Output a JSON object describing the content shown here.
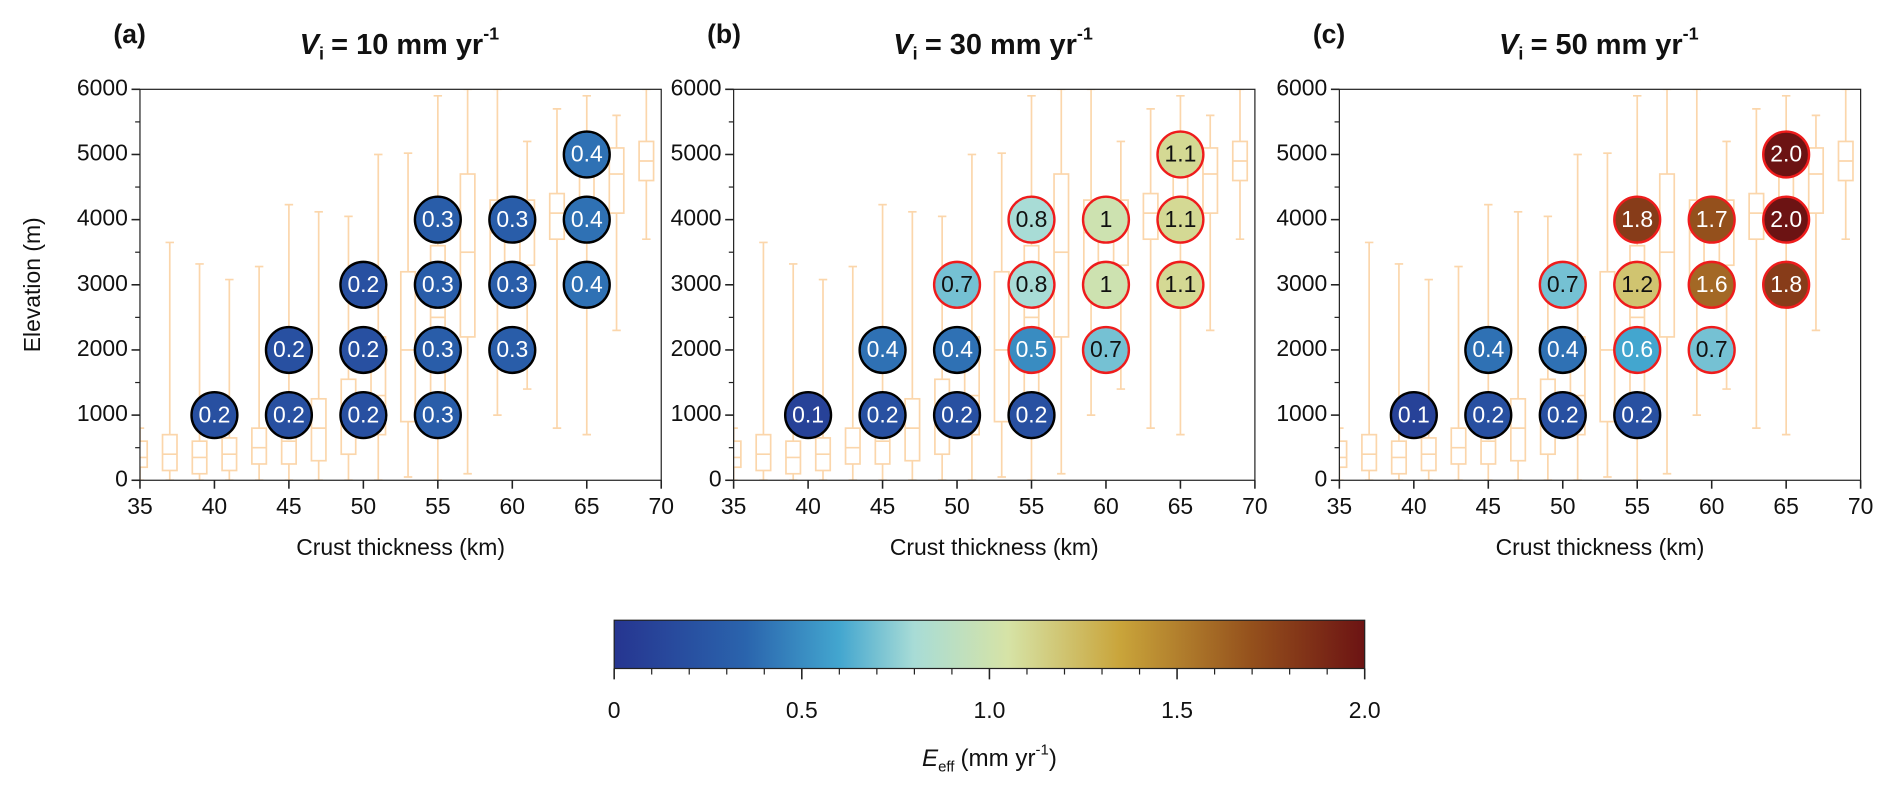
{
  "chart_data": [
    {
      "type": "scatter",
      "panel_label": "(a)",
      "title": {
        "symbol": "V",
        "subscript": "i",
        "text": "= 10 mm yr",
        "superscript": "-1"
      },
      "ylabel": "Elevation (m)",
      "xlabel": "Crust thickness (km)",
      "xlim": [
        35,
        70
      ],
      "xticks": [
        35,
        40,
        45,
        50,
        55,
        60,
        65,
        70
      ],
      "ylim": [
        0,
        6000
      ],
      "yticks": [
        0,
        1000,
        2000,
        3000,
        4000,
        5000,
        6000
      ],
      "yminor": [
        500,
        1500,
        2500,
        3500,
        4500,
        5500
      ],
      "x": [
        40,
        45,
        50,
        55,
        45,
        50,
        55,
        60,
        50,
        55,
        60,
        65,
        55,
        60,
        65,
        65
      ],
      "y": [
        1000,
        1000,
        1000,
        1000,
        2000,
        2000,
        2000,
        2000,
        3000,
        3000,
        3000,
        3000,
        4000,
        4000,
        4000,
        5000
      ],
      "values": [
        0.2,
        0.2,
        0.2,
        0.3,
        0.2,
        0.2,
        0.3,
        0.3,
        0.2,
        0.3,
        0.3,
        0.4,
        0.3,
        0.3,
        0.4,
        0.4
      ],
      "value_labels": [
        "0.2",
        "0.2",
        "0.2",
        "0.3",
        "0.2",
        "0.2",
        "0.3",
        "0.3",
        "0.2",
        "0.3",
        "0.3",
        "0.4",
        "0.3",
        "0.3",
        "0.4",
        "0.4"
      ],
      "edgecolors": [
        "#000000",
        "#000000",
        "#000000",
        "#000000",
        "#000000",
        "#000000",
        "#000000",
        "#000000",
        "#000000",
        "#000000",
        "#000000",
        "#000000",
        "#000000",
        "#000000",
        "#000000",
        "#000000"
      ]
    },
    {
      "type": "scatter",
      "panel_label": "(b)",
      "title": {
        "symbol": "V",
        "subscript": "i",
        "text": "= 30 mm yr",
        "superscript": "-1"
      },
      "xlabel": "Crust thickness (km)",
      "xlim": [
        35,
        70
      ],
      "xticks": [
        35,
        40,
        45,
        50,
        55,
        60,
        65,
        70
      ],
      "ylim": [
        0,
        6000
      ],
      "yticks": [
        0,
        1000,
        2000,
        3000,
        4000,
        5000,
        6000
      ],
      "yminor": [
        500,
        1500,
        2500,
        3500,
        4500,
        5500
      ],
      "x": [
        40,
        45,
        50,
        55,
        45,
        50,
        55,
        60,
        50,
        55,
        60,
        65,
        55,
        60,
        65,
        65
      ],
      "y": [
        1000,
        1000,
        1000,
        1000,
        2000,
        2000,
        2000,
        2000,
        3000,
        3000,
        3000,
        3000,
        4000,
        4000,
        4000,
        5000
      ],
      "values": [
        0.1,
        0.2,
        0.2,
        0.2,
        0.4,
        0.4,
        0.5,
        0.7,
        0.7,
        0.8,
        1,
        1.1,
        0.8,
        1,
        1.1,
        1.1
      ],
      "value_labels": [
        "0.1",
        "0.2",
        "0.2",
        "0.2",
        "0.4",
        "0.4",
        "0.5",
        "0.7",
        "0.7",
        "0.8",
        "1",
        "1.1",
        "0.8",
        "1",
        "1.1",
        "1.1"
      ],
      "edgecolors": [
        "#000000",
        "#000000",
        "#000000",
        "#000000",
        "#000000",
        "#000000",
        "#ee1c1c",
        "#ee1c1c",
        "#ee1c1c",
        "#ee1c1c",
        "#ee1c1c",
        "#ee1c1c",
        "#ee1c1c",
        "#ee1c1c",
        "#ee1c1c",
        "#ee1c1c"
      ]
    },
    {
      "type": "scatter",
      "panel_label": "(c)",
      "title": {
        "symbol": "V",
        "subscript": "i",
        "text": "= 50 mm yr",
        "superscript": "-1"
      },
      "xlabel": "Crust thickness (km)",
      "xlim": [
        35,
        70
      ],
      "xticks": [
        35,
        40,
        45,
        50,
        55,
        60,
        65,
        70
      ],
      "ylim": [
        0,
        6000
      ],
      "yticks": [
        0,
        1000,
        2000,
        3000,
        4000,
        5000,
        6000
      ],
      "yminor": [
        500,
        1500,
        2500,
        3500,
        4500,
        5500
      ],
      "x": [
        40,
        45,
        50,
        55,
        45,
        50,
        55,
        60,
        50,
        55,
        60,
        65,
        55,
        60,
        65,
        65
      ],
      "y": [
        1000,
        1000,
        1000,
        1000,
        2000,
        2000,
        2000,
        2000,
        3000,
        3000,
        3000,
        3000,
        4000,
        4000,
        4000,
        5000
      ],
      "values": [
        0.1,
        0.2,
        0.2,
        0.2,
        0.4,
        0.4,
        0.6,
        0.7,
        0.7,
        1.2,
        1.6,
        1.8,
        1.8,
        1.7,
        2,
        2
      ],
      "value_labels": [
        "0.1",
        "0.2",
        "0.2",
        "0.2",
        "0.4",
        "0.4",
        "0.6",
        "0.7",
        "0.7",
        "1.2",
        "1.6",
        "1.8",
        "1.8",
        "1.7",
        "2.0",
        "2.0"
      ],
      "edgecolors": [
        "#000000",
        "#000000",
        "#000000",
        "#000000",
        "#000000",
        "#000000",
        "#ee1c1c",
        "#ee1c1c",
        "#ee1c1c",
        "#ee1c1c",
        "#ee1c1c",
        "#ee1c1c",
        "#ee1c1c",
        "#ee1c1c",
        "#ee1c1c",
        "#ee1c1c"
      ]
    },
    {
      "type": "colorbar",
      "label": {
        "symbol": "E",
        "subscript": "eff",
        "text": "(mm yr",
        "superscript": "-1",
        "suffix": ")"
      },
      "lim": [
        0,
        2
      ],
      "ticks": [
        0,
        0.5,
        {
          "value": 1,
          "label": "1.0"
        },
        1.5,
        {
          "value": 2,
          "label": "2.0"
        }
      ],
      "minor_ticks": [
        0.1,
        0.2,
        0.3,
        0.4,
        0.6,
        0.7,
        0.8,
        0.9,
        1.1,
        1.2,
        1.3,
        1.4,
        1.6,
        1.7,
        1.8,
        1.9
      ],
      "colors": [
        [
          0,
          "#263590"
        ],
        [
          0.35,
          "#2a64ad"
        ],
        [
          0.6,
          "#43a6cf"
        ],
        [
          0.8,
          "#a8dcd6"
        ],
        [
          1.05,
          "#d6e3a6"
        ],
        [
          1.35,
          "#c9a43a"
        ],
        [
          1.7,
          "#94501c"
        ],
        [
          2,
          "#6c1313"
        ]
      ]
    }
  ],
  "boxplot": {
    "x": [
      35,
      37,
      39,
      41,
      43,
      45,
      47,
      49,
      51,
      53,
      55,
      57,
      59,
      61,
      63,
      65,
      67,
      69
    ],
    "whislo": [
      0,
      0,
      0,
      0,
      0,
      0,
      0,
      0,
      0,
      50,
      0,
      100,
      1000,
      1400,
      800,
      700,
      2300,
      3700
    ],
    "q1": [
      200,
      150,
      100,
      150,
      250,
      250,
      300,
      400,
      700,
      900,
      1100,
      2200,
      3000,
      3300,
      3700,
      3900,
      4100,
      4600
    ],
    "med": [
      350,
      400,
      350,
      400,
      500,
      600,
      800,
      900,
      1300,
      2000,
      2500,
      3500,
      3800,
      3900,
      4100,
      4300,
      4700,
      4900
    ],
    "q3": [
      600,
      700,
      600,
      650,
      800,
      1000,
      1250,
      1550,
      2200,
      3200,
      3600,
      4700,
      4300,
      4300,
      4400,
      4700,
      5100,
      5200
    ],
    "whishi": [
      800,
      3650,
      3320,
      3080,
      3280,
      4230,
      4120,
      4050,
      5000,
      5020,
      5900,
      6000,
      6000,
      5200,
      5700,
      5900,
      5600,
      6000
    ]
  }
}
